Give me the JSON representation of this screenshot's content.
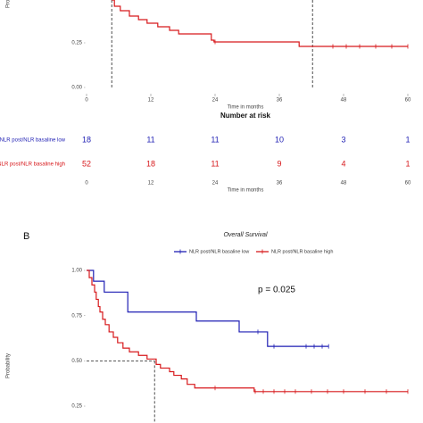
{
  "chart_data": [
    {
      "type": "km",
      "ylabel": "Probability",
      "xlabel": "Time in months",
      "xlim": [
        0,
        60
      ],
      "xticks": [
        0,
        12,
        24,
        36,
        48,
        60
      ],
      "ylim": [
        0,
        0.5
      ],
      "yticks": [
        {
          "value": 0.25,
          "label": "0.25"
        },
        {
          "value": 0,
          "label": "0.00"
        }
      ],
      "grid": false,
      "series": [
        {
          "color": "#d7191c",
          "x": [
            4.7,
            5.2,
            6.3,
            8,
            9.7,
            11.3,
            13.3,
            15.5,
            17.2,
            23.3,
            23.8,
            39.7,
            60
          ],
          "values": [
            0.49,
            0.455,
            0.43,
            0.4,
            0.38,
            0.36,
            0.34,
            0.32,
            0.3,
            0.265,
            0.255,
            0.23,
            0.23
          ],
          "censor_x": [
            24,
            46,
            48.5,
            51,
            54,
            57,
            60
          ]
        }
      ],
      "reference_x": [
        4.7,
        42.2
      ],
      "risk_table": {
        "title": "Number at risk",
        "xlabel": "Time in months",
        "xticks": [
          0,
          12,
          24,
          36,
          48,
          60
        ],
        "rows": [
          {
            "name": "NLR post/NLR basaline low",
            "color": "#1f1fb4",
            "values": [
              18,
              11,
              11,
              10,
              3,
              1
            ]
          },
          {
            "name": "NLR post/NLR basaline high",
            "color": "#d7191c",
            "values": [
              52,
              18,
              11,
              9,
              4,
              1
            ]
          }
        ]
      }
    },
    {
      "type": "km",
      "panel_label": "B",
      "title": "Overall Survival",
      "ylabel": "Probability",
      "annotation": "p = 0.025",
      "xlim": [
        0,
        60
      ],
      "ylim": [
        0,
        1
      ],
      "yticks": [
        {
          "value": 1,
          "label": "1.00"
        },
        {
          "value": 0.75,
          "label": "0.75"
        },
        {
          "value": 0.5,
          "label": "0.50"
        },
        {
          "value": 0.25,
          "label": "0.25"
        }
      ],
      "grid": false,
      "series": [
        {
          "name": "NLR post/NLR basaline low",
          "color": "#1f1fb4",
          "x": [
            0,
            1.3,
            3.3,
            7.7,
            20.5,
            28.5,
            33.8,
            45.2
          ],
          "values": [
            1,
            0.94,
            0.88,
            0.77,
            0.72,
            0.66,
            0.58,
            0.58
          ],
          "censor_x": [
            32,
            35,
            41,
            42.5,
            44,
            45.2
          ]
        },
        {
          "name": "NLR post/NLR basaline high",
          "color": "#d7191c",
          "x": [
            0,
            0.5,
            1,
            1.5,
            1.8,
            2.2,
            2.5,
            3,
            3.5,
            4.2,
            5,
            5.8,
            6.8,
            8,
            9.7,
            11.3,
            13,
            13.8,
            15.5,
            16.3,
            17.7,
            18.8,
            20.2,
            31.3,
            60
          ],
          "values": [
            1,
            0.96,
            0.92,
            0.88,
            0.84,
            0.8,
            0.77,
            0.73,
            0.7,
            0.66,
            0.63,
            0.6,
            0.57,
            0.55,
            0.53,
            0.51,
            0.48,
            0.46,
            0.44,
            0.42,
            0.4,
            0.37,
            0.35,
            0.33,
            0.33
          ],
          "censor_x": [
            24,
            31.5,
            33,
            35,
            37,
            39,
            42,
            45,
            48,
            52,
            56,
            60
          ]
        }
      ],
      "median_x": 12.7,
      "median_y": 0.5
    }
  ]
}
